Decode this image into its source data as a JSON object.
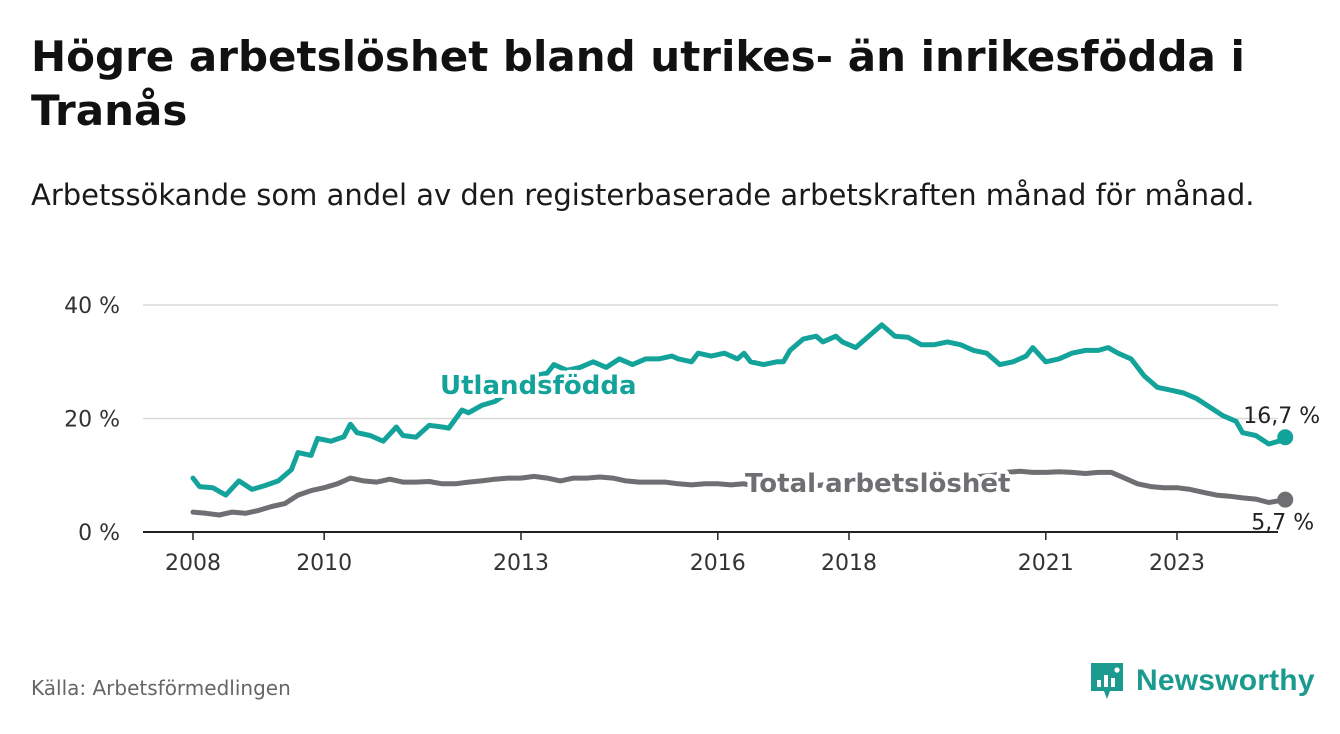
{
  "title": "Högre arbetslöshet bland utrikes- än inrikesfödda i Tranås",
  "subtitle": "Arbetssökande som andel av den registerbaserade arbetskraften månad för månad.",
  "source": "Källa: Arbetsförmedlingen",
  "brand": {
    "name": "Newsworthy",
    "icon": "newsworthy-logo-icon"
  },
  "colors": {
    "foreign_born": "#14a39a",
    "total": "#6e6e73",
    "grid": "#d9d9d9",
    "brand": "#1b9a8f"
  },
  "chart_data": {
    "type": "line",
    "x_label": "",
    "y_label": "",
    "xlim": [
      2007.85,
      2024.65
    ],
    "ylim": [
      0,
      40
    ],
    "y_ticks": [
      0,
      20,
      40
    ],
    "y_tick_labels": [
      "0 %",
      "20 %",
      "40 %"
    ],
    "x_ticks": [
      2008,
      2010,
      2013,
      2016,
      2018,
      2021,
      2023
    ],
    "x_tick_labels": [
      "2008",
      "2010",
      "2013",
      "2016",
      "2018",
      "2021",
      "2023"
    ],
    "series": [
      {
        "name": "Utlandsfödda",
        "end_label": "16,7 %",
        "points": [
          [
            2008.0,
            9.5
          ],
          [
            2008.1,
            8.0
          ],
          [
            2008.3,
            7.8
          ],
          [
            2008.5,
            6.5
          ],
          [
            2008.7,
            9.0
          ],
          [
            2008.9,
            7.5
          ],
          [
            2009.1,
            8.2
          ],
          [
            2009.3,
            9.0
          ],
          [
            2009.5,
            11.0
          ],
          [
            2009.6,
            14.0
          ],
          [
            2009.8,
            13.5
          ],
          [
            2009.9,
            16.5
          ],
          [
            2010.1,
            16.0
          ],
          [
            2010.3,
            16.8
          ],
          [
            2010.4,
            19.0
          ],
          [
            2010.5,
            17.5
          ],
          [
            2010.7,
            17.0
          ],
          [
            2010.9,
            16.0
          ],
          [
            2011.1,
            18.5
          ],
          [
            2011.2,
            17.0
          ],
          [
            2011.4,
            16.7
          ],
          [
            2011.6,
            18.8
          ],
          [
            2011.8,
            18.5
          ],
          [
            2011.9,
            18.3
          ],
          [
            2012.1,
            21.5
          ],
          [
            2012.2,
            21.0
          ],
          [
            2012.4,
            22.3
          ],
          [
            2012.6,
            23.0
          ],
          [
            2012.8,
            24.5
          ],
          [
            2013.0,
            26.5
          ],
          [
            2013.2,
            27.5
          ],
          [
            2013.4,
            28.0
          ],
          [
            2013.5,
            29.5
          ],
          [
            2013.7,
            28.5
          ],
          [
            2013.9,
            29.0
          ],
          [
            2014.1,
            30.0
          ],
          [
            2014.3,
            29.0
          ],
          [
            2014.5,
            30.5
          ],
          [
            2014.7,
            29.5
          ],
          [
            2014.9,
            30.5
          ],
          [
            2015.1,
            30.5
          ],
          [
            2015.3,
            31.0
          ],
          [
            2015.4,
            30.5
          ],
          [
            2015.6,
            30.0
          ],
          [
            2015.7,
            31.5
          ],
          [
            2015.9,
            31.0
          ],
          [
            2016.1,
            31.5
          ],
          [
            2016.3,
            30.5
          ],
          [
            2016.4,
            31.5
          ],
          [
            2016.5,
            30.0
          ],
          [
            2016.7,
            29.5
          ],
          [
            2016.9,
            30.0
          ],
          [
            2017.0,
            30.0
          ],
          [
            2017.1,
            32.0
          ],
          [
            2017.3,
            34.0
          ],
          [
            2017.5,
            34.5
          ],
          [
            2017.6,
            33.5
          ],
          [
            2017.8,
            34.5
          ],
          [
            2017.9,
            33.5
          ],
          [
            2018.1,
            32.5
          ],
          [
            2018.3,
            34.5
          ],
          [
            2018.5,
            36.5
          ],
          [
            2018.7,
            34.5
          ],
          [
            2018.9,
            34.3
          ],
          [
            2019.1,
            33.0
          ],
          [
            2019.3,
            33.0
          ],
          [
            2019.5,
            33.5
          ],
          [
            2019.7,
            33.0
          ],
          [
            2019.9,
            32.0
          ],
          [
            2020.1,
            31.5
          ],
          [
            2020.3,
            29.5
          ],
          [
            2020.5,
            30.0
          ],
          [
            2020.7,
            31.0
          ],
          [
            2020.8,
            32.5
          ],
          [
            2021.0,
            30.0
          ],
          [
            2021.2,
            30.5
          ],
          [
            2021.4,
            31.5
          ],
          [
            2021.6,
            32.0
          ],
          [
            2021.8,
            32.0
          ],
          [
            2021.95,
            32.5
          ],
          [
            2022.1,
            31.5
          ],
          [
            2022.3,
            30.5
          ],
          [
            2022.5,
            27.5
          ],
          [
            2022.7,
            25.5
          ],
          [
            2022.9,
            25.0
          ],
          [
            2023.1,
            24.5
          ],
          [
            2023.3,
            23.5
          ],
          [
            2023.5,
            22.0
          ],
          [
            2023.7,
            20.5
          ],
          [
            2023.9,
            19.5
          ],
          [
            2024.0,
            17.5
          ],
          [
            2024.2,
            17.0
          ],
          [
            2024.4,
            15.5
          ],
          [
            2024.55,
            16.0
          ],
          [
            2024.65,
            16.7
          ]
        ]
      },
      {
        "name": "Total arbetslöshet",
        "end_label": "5,7 %",
        "points": [
          [
            2008.0,
            3.5
          ],
          [
            2008.2,
            3.3
          ],
          [
            2008.4,
            3.0
          ],
          [
            2008.6,
            3.5
          ],
          [
            2008.8,
            3.3
          ],
          [
            2009.0,
            3.8
          ],
          [
            2009.2,
            4.5
          ],
          [
            2009.4,
            5.0
          ],
          [
            2009.6,
            6.5
          ],
          [
            2009.8,
            7.3
          ],
          [
            2010.0,
            7.8
          ],
          [
            2010.2,
            8.5
          ],
          [
            2010.4,
            9.5
          ],
          [
            2010.6,
            9.0
          ],
          [
            2010.8,
            8.8
          ],
          [
            2011.0,
            9.3
          ],
          [
            2011.2,
            8.8
          ],
          [
            2011.4,
            8.8
          ],
          [
            2011.6,
            8.9
          ],
          [
            2011.8,
            8.5
          ],
          [
            2012.0,
            8.5
          ],
          [
            2012.2,
            8.8
          ],
          [
            2012.4,
            9.0
          ],
          [
            2012.6,
            9.3
          ],
          [
            2012.8,
            9.5
          ],
          [
            2013.0,
            9.5
          ],
          [
            2013.2,
            9.8
          ],
          [
            2013.4,
            9.5
          ],
          [
            2013.6,
            9.0
          ],
          [
            2013.8,
            9.5
          ],
          [
            2014.0,
            9.5
          ],
          [
            2014.2,
            9.7
          ],
          [
            2014.4,
            9.5
          ],
          [
            2014.6,
            9.0
          ],
          [
            2014.8,
            8.8
          ],
          [
            2015.0,
            8.8
          ],
          [
            2015.2,
            8.8
          ],
          [
            2015.4,
            8.5
          ],
          [
            2015.6,
            8.3
          ],
          [
            2015.8,
            8.5
          ],
          [
            2016.0,
            8.5
          ],
          [
            2016.2,
            8.3
          ],
          [
            2016.4,
            8.5
          ],
          [
            2016.6,
            8.0
          ],
          [
            2016.8,
            7.5
          ],
          [
            2017.0,
            7.8
          ],
          [
            2017.2,
            8.0
          ],
          [
            2017.4,
            8.0
          ],
          [
            2017.6,
            8.3
          ],
          [
            2017.8,
            8.5
          ],
          [
            2018.0,
            8.5
          ],
          [
            2018.2,
            8.8
          ],
          [
            2018.4,
            8.8
          ],
          [
            2018.6,
            9.0
          ],
          [
            2018.8,
            9.0
          ],
          [
            2019.0,
            9.0
          ],
          [
            2019.2,
            9.2
          ],
          [
            2019.4,
            9.3
          ],
          [
            2019.6,
            9.3
          ],
          [
            2019.8,
            9.5
          ],
          [
            2020.0,
            9.8
          ],
          [
            2020.2,
            10.0
          ],
          [
            2020.4,
            10.5
          ],
          [
            2020.6,
            10.7
          ],
          [
            2020.8,
            10.5
          ],
          [
            2021.0,
            10.5
          ],
          [
            2021.2,
            10.6
          ],
          [
            2021.4,
            10.5
          ],
          [
            2021.6,
            10.3
          ],
          [
            2021.8,
            10.5
          ],
          [
            2022.0,
            10.5
          ],
          [
            2022.2,
            9.5
          ],
          [
            2022.4,
            8.5
          ],
          [
            2022.6,
            8.0
          ],
          [
            2022.8,
            7.8
          ],
          [
            2023.0,
            7.8
          ],
          [
            2023.2,
            7.5
          ],
          [
            2023.4,
            7.0
          ],
          [
            2023.6,
            6.5
          ],
          [
            2023.8,
            6.3
          ],
          [
            2024.0,
            6.0
          ],
          [
            2024.2,
            5.8
          ],
          [
            2024.4,
            5.2
          ],
          [
            2024.65,
            5.7
          ]
        ]
      }
    ]
  }
}
